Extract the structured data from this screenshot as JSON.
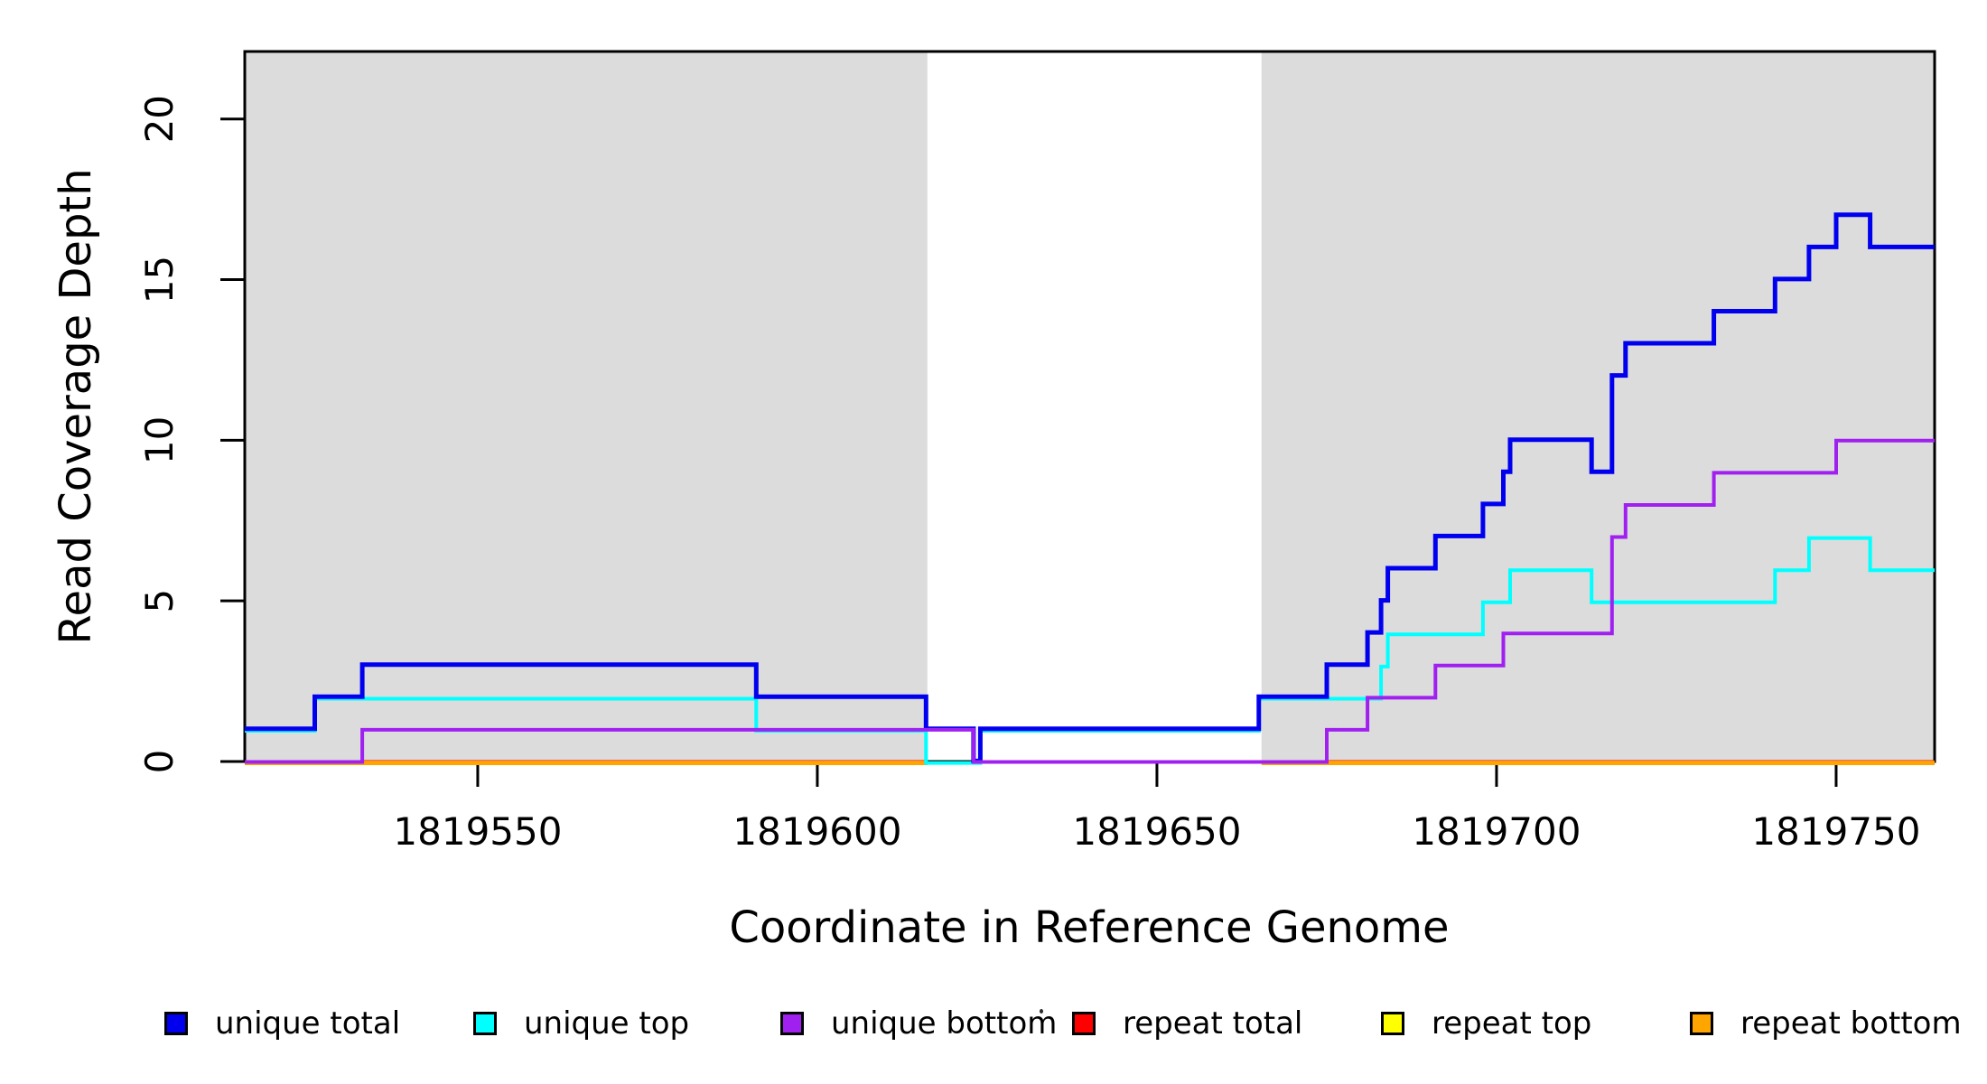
{
  "chart_data": {
    "type": "line",
    "subtype": "step",
    "title": "",
    "xlabel": "Coordinate in Reference Genome",
    "ylabel": "Read Coverage Depth",
    "xlim": [
      1819515.7,
      1819764.5
    ],
    "ylim": [
      0,
      22.1
    ],
    "x_ticks": [
      1819550,
      1819600,
      1819650,
      1819700,
      1819750
    ],
    "x_tick_labels": [
      "1819550",
      "1819600",
      "1819650",
      "1819700",
      "1819750"
    ],
    "y_ticks": [
      0,
      5,
      10,
      15,
      20
    ],
    "y_tick_labels": [
      "0",
      "5",
      "10",
      "15",
      "20"
    ],
    "grid": false,
    "legend_position": "bottom",
    "axis_color": "#000000",
    "background_shading": {
      "color": "#dcdcdc",
      "meaning": "repeat regions of reference genome",
      "regions": [
        {
          "x0": 1819515.7,
          "x1": 1819616.2
        },
        {
          "x0": 1819665.4,
          "x1": 1819764.5
        }
      ]
    },
    "series": [
      {
        "name": "unique total",
        "color": "#0000EE",
        "render": "step",
        "steps": [
          [
            1819515.7,
            1
          ],
          [
            1819526,
            2
          ],
          [
            1819533,
            3
          ],
          [
            1819591,
            2
          ],
          [
            1819616,
            1
          ],
          [
            1819623,
            0
          ],
          [
            1819624,
            1
          ],
          [
            1819665,
            2
          ],
          [
            1819675,
            3
          ],
          [
            1819681,
            4
          ],
          [
            1819683,
            5
          ],
          [
            1819684,
            6
          ],
          [
            1819691,
            7
          ],
          [
            1819698,
            8
          ],
          [
            1819701,
            9
          ],
          [
            1819702,
            10
          ],
          [
            1819714,
            9
          ],
          [
            1819717,
            12
          ],
          [
            1819719,
            13
          ],
          [
            1819732,
            14
          ],
          [
            1819741,
            15
          ],
          [
            1819746,
            16
          ],
          [
            1819750,
            17
          ],
          [
            1819755,
            16
          ]
        ],
        "x_end": 1819764.5
      },
      {
        "name": "unique top",
        "color": "#00FFFF",
        "render": "step",
        "steps": [
          [
            1819515.7,
            1
          ],
          [
            1819526,
            2
          ],
          [
            1819591,
            1
          ],
          [
            1819616,
            0
          ],
          [
            1819624,
            1
          ],
          [
            1819665,
            2
          ],
          [
            1819683,
            3
          ],
          [
            1819684,
            4
          ],
          [
            1819698,
            5
          ],
          [
            1819702,
            6
          ],
          [
            1819714,
            5
          ],
          [
            1819741,
            6
          ],
          [
            1819746,
            7
          ],
          [
            1819755,
            6
          ]
        ],
        "x_end": 1819764.5
      },
      {
        "name": "unique bottom",
        "color": "#A020F0",
        "render": "step",
        "steps": [
          [
            1819515.7,
            0
          ],
          [
            1819533,
            1
          ],
          [
            1819623,
            0
          ],
          [
            1819675,
            1
          ],
          [
            1819681,
            2
          ],
          [
            1819691,
            3
          ],
          [
            1819701,
            4
          ],
          [
            1819717,
            7
          ],
          [
            1819719,
            8
          ],
          [
            1819732,
            9
          ],
          [
            1819750,
            10
          ]
        ],
        "x_end": 1819764.5
      },
      {
        "name": "repeat total",
        "color": "#FF0000",
        "render": "segments",
        "segments": [
          {
            "x0": 1819515.7,
            "x1": 1819616.2,
            "value": 0
          },
          {
            "x0": 1819665.4,
            "x1": 1819764.5,
            "value": 0
          }
        ]
      },
      {
        "name": "repeat top",
        "color": "#FFFF00",
        "render": "segments",
        "segments": [
          {
            "x0": 1819515.7,
            "x1": 1819616.2,
            "value": 0
          },
          {
            "x0": 1819665.4,
            "x1": 1819764.5,
            "value": 0
          }
        ]
      },
      {
        "name": "repeat bottom",
        "color": "#FFA500",
        "render": "segments",
        "segments": [
          {
            "x0": 1819515.7,
            "x1": 1819616.2,
            "value": 0
          },
          {
            "x0": 1819665.4,
            "x1": 1819764.5,
            "value": 0
          }
        ]
      }
    ]
  },
  "legend": {
    "items": [
      {
        "label": "unique total",
        "color": "#0000EE"
      },
      {
        "label": "unique top",
        "color": "#00FFFF"
      },
      {
        "label": "unique bottom",
        "color": "#A020F0"
      },
      {
        "label": "repeat total",
        "color": "#FF0000"
      },
      {
        "label": "repeat top",
        "color": "#FFFF00"
      },
      {
        "label": "repeat bottom",
        "color": "#FFA500"
      }
    ]
  }
}
